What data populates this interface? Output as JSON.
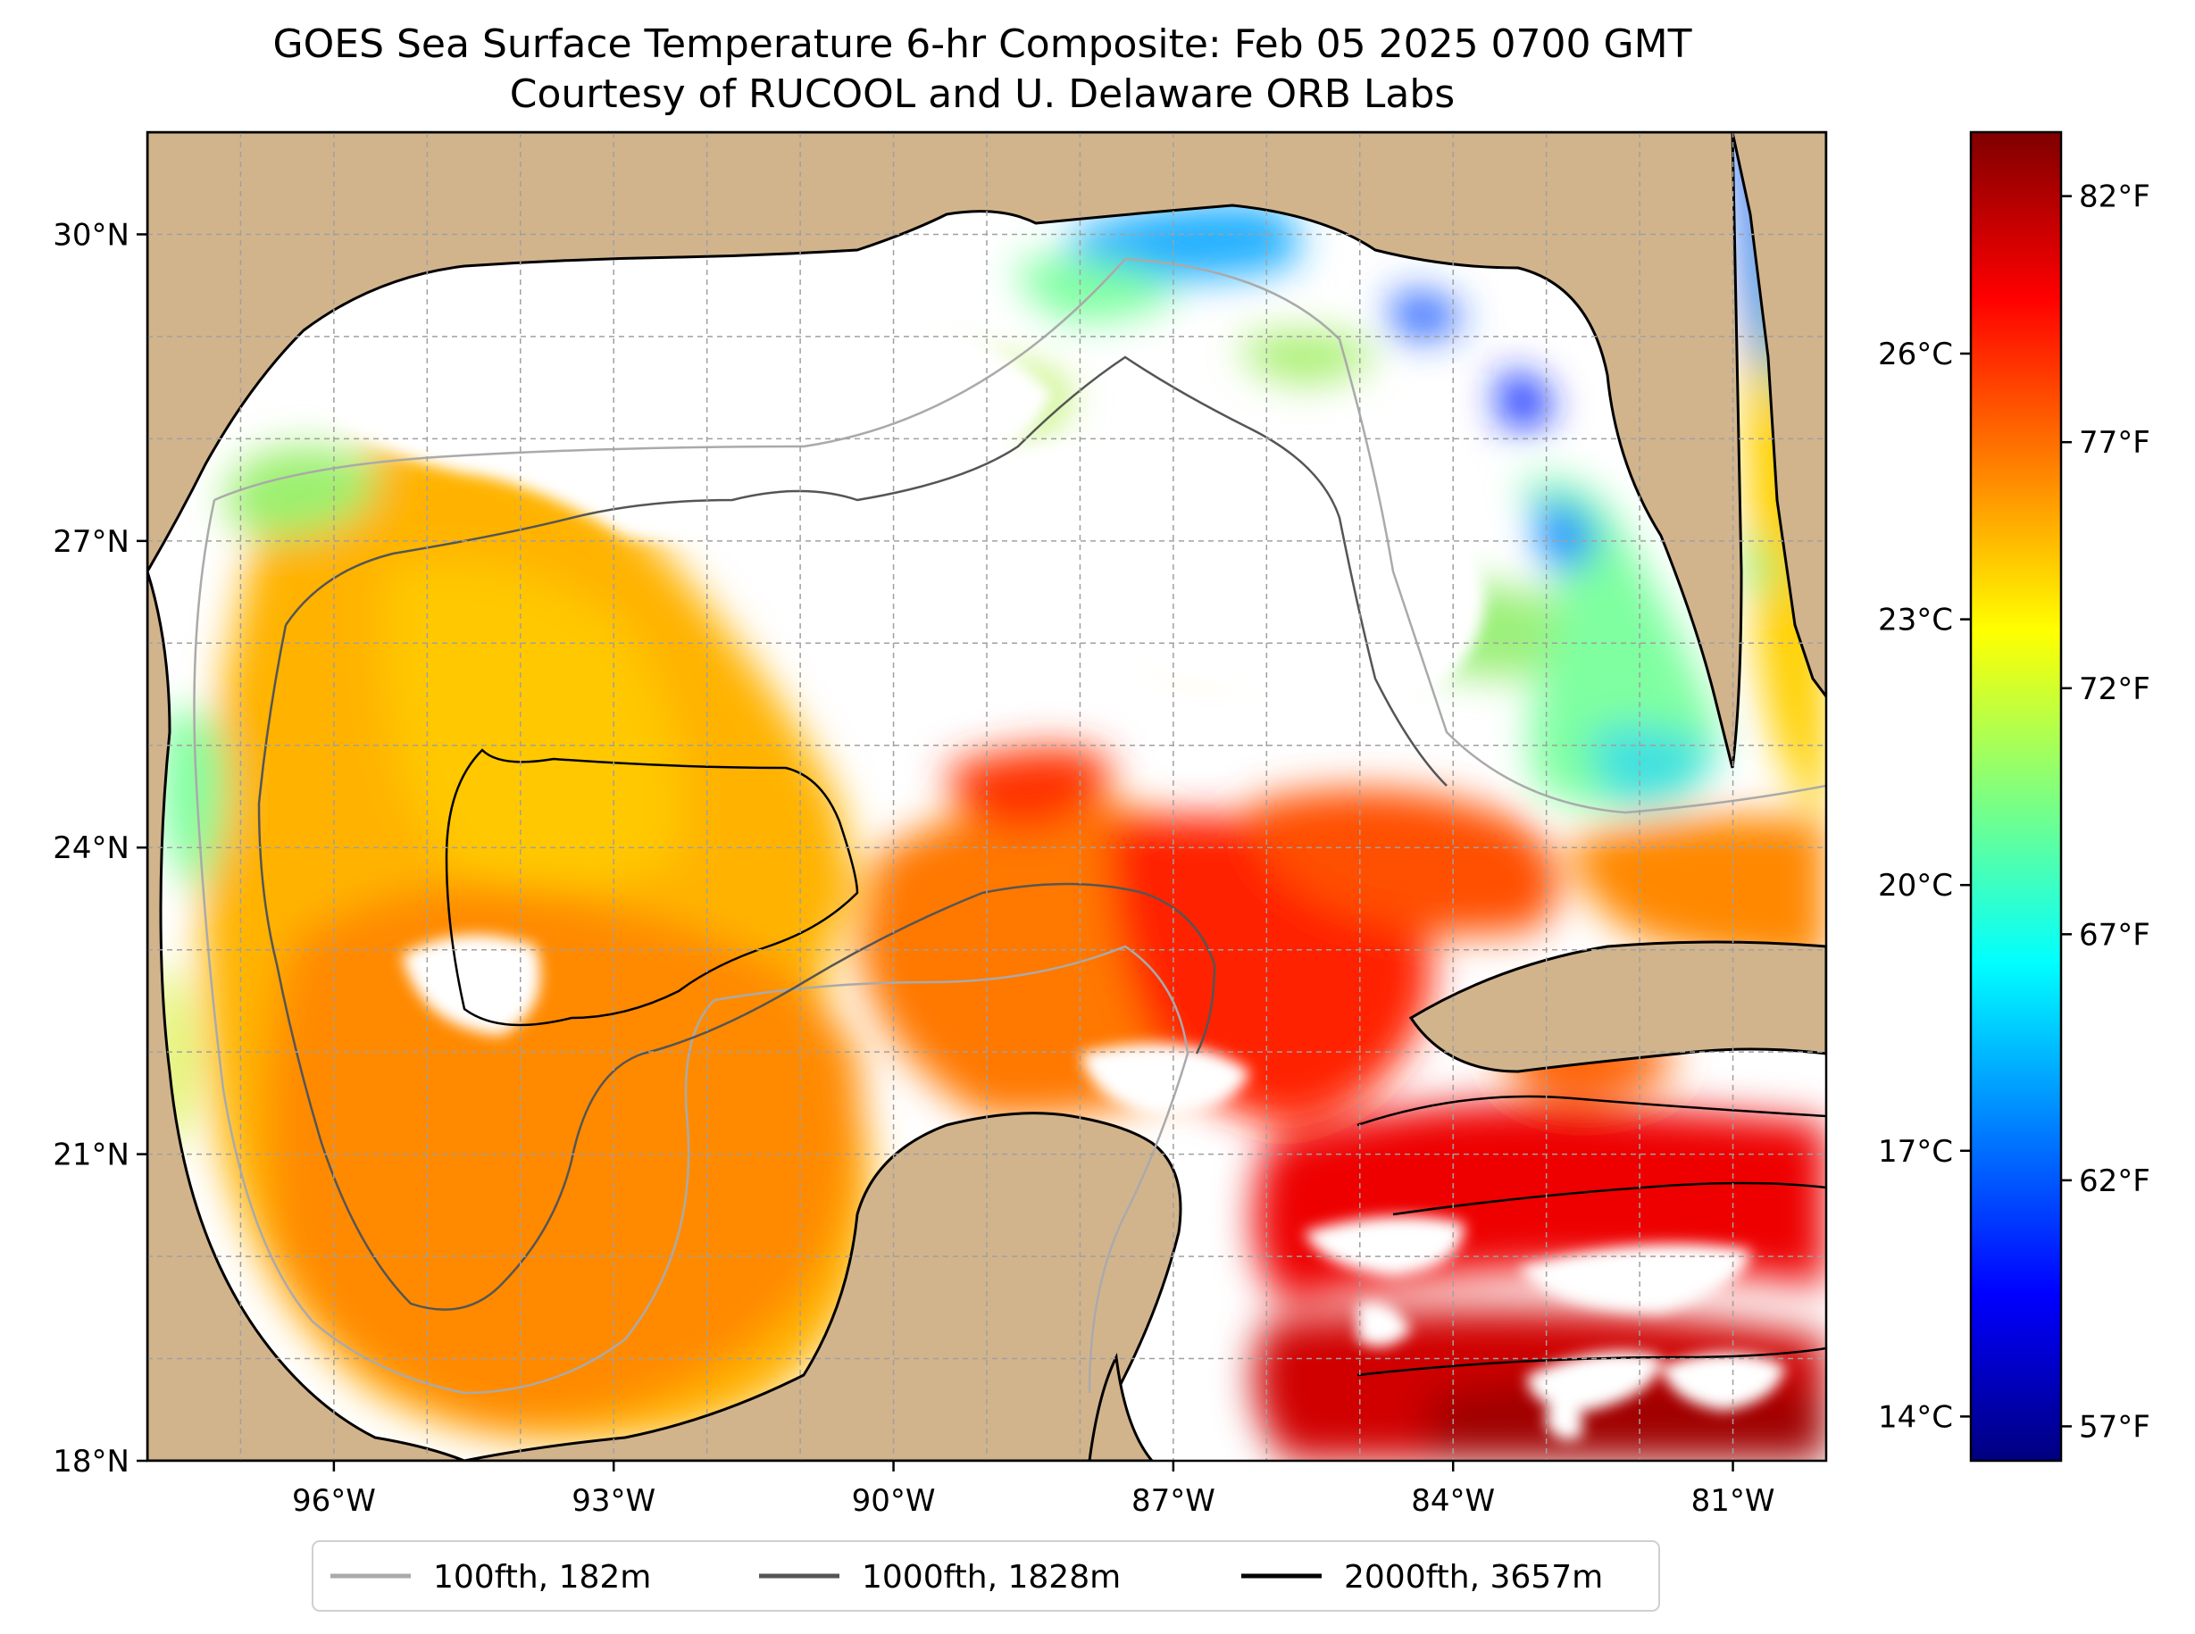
{
  "title": {
    "line1": "GOES Sea Surface Temperature 6-hr Composite: Feb 05 2025 0700 GMT",
    "line2": "Courtesy of RUCOOL and U. Delaware ORB Labs"
  },
  "map": {
    "lon_range": [
      -98,
      -80
    ],
    "lat_range": [
      18,
      31
    ],
    "lat_ticks": [
      {
        "value": 30,
        "label": "30°N"
      },
      {
        "value": 27,
        "label": "27°N"
      },
      {
        "value": 24,
        "label": "24°N"
      },
      {
        "value": 21,
        "label": "21°N"
      },
      {
        "value": 18,
        "label": "18°N"
      }
    ],
    "lon_ticks": [
      {
        "value": -96,
        "label": "96°W"
      },
      {
        "value": -93,
        "label": "93°W"
      },
      {
        "value": -90,
        "label": "90°W"
      },
      {
        "value": -87,
        "label": "87°W"
      },
      {
        "value": -84,
        "label": "84°W"
      },
      {
        "value": -81,
        "label": "81°W"
      }
    ],
    "colors": {
      "land": "#d2b48c",
      "no_data": "#ffffff",
      "grid": "#a0a0a0"
    }
  },
  "colorbar": {
    "range_f": [
      56.3,
      83.3
    ],
    "celsius_ticks": [
      {
        "value": 26,
        "label": "26°C"
      },
      {
        "value": 23,
        "label": "23°C"
      },
      {
        "value": 20,
        "label": "20°C"
      },
      {
        "value": 17,
        "label": "17°C"
      },
      {
        "value": 14,
        "label": "14°C"
      }
    ],
    "fahrenheit_ticks": [
      {
        "value": 82,
        "label": "82°F"
      },
      {
        "value": 77,
        "label": "77°F"
      },
      {
        "value": 72,
        "label": "72°F"
      },
      {
        "value": 67,
        "label": "67°F"
      },
      {
        "value": 62,
        "label": "62°F"
      },
      {
        "value": 57,
        "label": "57°F"
      }
    ],
    "stops": [
      "#00007f",
      "#0000ff",
      "#007fff",
      "#00ffff",
      "#7fff7f",
      "#ffff00",
      "#ff7f00",
      "#ff0000",
      "#7f0000"
    ]
  },
  "legend": {
    "items": [
      {
        "label": "100fth, 182m",
        "color": "#aaaaaa"
      },
      {
        "label": "1000fth, 1828m",
        "color": "#555555"
      },
      {
        "label": "2000fth, 3657m",
        "color": "#000000"
      }
    ]
  }
}
